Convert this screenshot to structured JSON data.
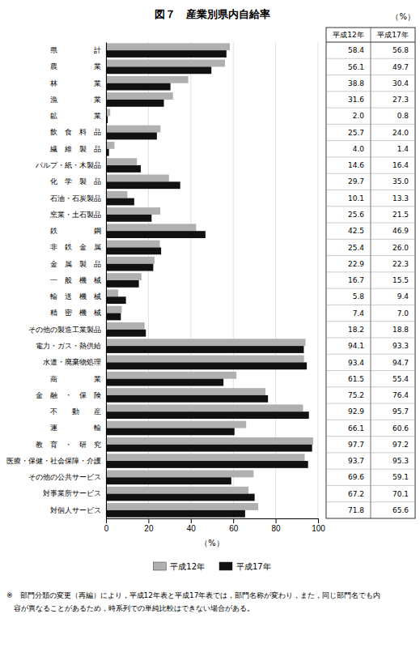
{
  "chart_data": {
    "type": "bar",
    "orientation": "horizontal",
    "title": "図７　産業別県内自給率",
    "annotations": [
      "（%）",
      "※　部門分類の変更（再編）により，平成12年表と平成17年表では，部門名称が変わり，また，同じ部門名でも内",
      "　容が異なることがあるため，時系列での単純比較はできない場合がある。"
    ],
    "x_label": "（%）",
    "categories": [
      "県　　　　　計",
      "農　　　　　業",
      "林　　　　　業",
      "漁　　　　　業",
      "鉱　　　　　業",
      "飲　食　料　品",
      "繊　維　製　品",
      "パルプ・紙・木製品",
      "化　学　製　品",
      "石油・石炭製品",
      "窯業・土石製品",
      "鉄　　　　　鋼",
      "非　鉄　金　属",
      "金　属　製　品",
      "一　般　機　械",
      "輸　送　機　械",
      "精　密　機　械",
      "その他の製造工業製品",
      "電力・ガス・熱供給",
      "水道・廃棄物処理",
      "商　　　　　業",
      "金　融　・　保　険",
      "不　　動　　産",
      "運　　　　　輸",
      "教　育　・　研　究",
      "医療・保健・社会保障・介護",
      "その他の公共サービス",
      "対事業所サービス",
      "対個人サービス"
    ],
    "series": [
      {
        "name": "平成12年",
        "color": "#b0b0b0",
        "values": [
          58.4,
          56.1,
          38.8,
          31.6,
          2.0,
          25.7,
          4.0,
          14.6,
          29.7,
          10.1,
          25.6,
          42.5,
          25.4,
          22.9,
          16.7,
          5.8,
          7.4,
          18.2,
          94.1,
          93.4,
          61.5,
          75.2,
          92.9,
          66.1,
          97.7,
          93.7,
          69.6,
          67.2,
          71.8
        ]
      },
      {
        "name": "平成17年",
        "color": "#111111",
        "values": [
          56.8,
          49.7,
          30.4,
          27.3,
          0.8,
          24.0,
          1.4,
          16.4,
          35.0,
          13.3,
          21.5,
          46.9,
          26.0,
          22.3,
          15.5,
          9.4,
          7.0,
          18.8,
          93.3,
          94.7,
          55.4,
          76.4,
          95.7,
          60.6,
          97.2,
          95.3,
          59.1,
          70.1,
          65.6
        ]
      }
    ],
    "xlim": [
      0,
      100
    ],
    "xticks": [
      0,
      20,
      40,
      60,
      80,
      100
    ],
    "grid": true,
    "legend": "bottom",
    "data_labels": true
  }
}
